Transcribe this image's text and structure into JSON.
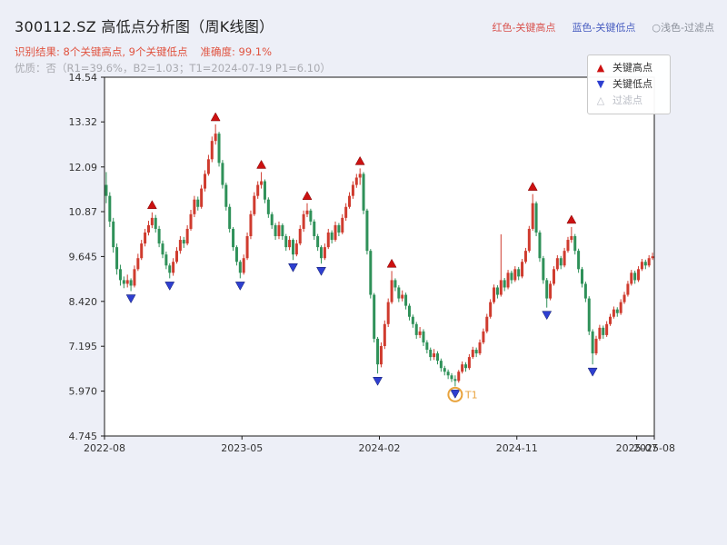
{
  "header": {
    "title": "300112.SZ 高低点分析图（周K线图）",
    "legend": {
      "high": "红色-关键高点",
      "low": "蓝色-关键低点",
      "filtered": "○浅色-过滤点",
      "high_color": "#d9534f",
      "low_color": "#4a5fc1",
      "filtered_color": "#8a8f99"
    },
    "result_text": "识别结果: 8个关键高点, 9个关键低点",
    "accuracy_text": "准确度: 99.1%",
    "quality_text": "优质：否（R1=39.6%，B2=1.03；T1=2024-07-19 P1=6.10）"
  },
  "chart_legend": [
    {
      "symbol": "▲",
      "label": "关键高点",
      "color": "#cc1111",
      "label_color": "#333333"
    },
    {
      "symbol": "▼",
      "label": "关键低点",
      "color": "#2e3fd0",
      "label_color": "#333333"
    },
    {
      "symbol": "△",
      "label": "过滤点",
      "color": "#b9bcc4",
      "label_color": "#b9bcc4"
    }
  ],
  "chart_data": {
    "type": "candlestick",
    "title": "300112.SZ 高低点分析图（周K线图）",
    "xlabel": "",
    "ylabel": "",
    "legend_position": "upper-right",
    "grid": false,
    "ylim": [
      4.745,
      14.54
    ],
    "y_ticks": [
      "4.745",
      "5.970",
      "7.195",
      "8.420",
      "9.645",
      "10.87",
      "12.09",
      "13.32",
      "14.54"
    ],
    "x_ticks": [
      {
        "label": "2022-08",
        "index": 0
      },
      {
        "label": "2023-05",
        "index": 39
      },
      {
        "label": "2024-02",
        "index": 78
      },
      {
        "label": "2024-11",
        "index": 117
      },
      {
        "label": "2025-07",
        "index": 151
      },
      {
        "label": "2025-08",
        "index": 156
      }
    ],
    "up_color": "#cf3b2e",
    "down_color": "#2f9159",
    "high_marker_color": "#cc1111",
    "low_marker_color": "#2e3fd0",
    "t1_color": "#e8a33d",
    "high_points": [
      13,
      31,
      44,
      57,
      72,
      81,
      121,
      132
    ],
    "low_points": [
      7,
      18,
      38,
      53,
      61,
      77,
      99,
      125,
      138
    ],
    "t1_marker": {
      "index": 99,
      "label": "T1",
      "price": 6.1
    },
    "candles": [
      [
        11.6,
        11.95,
        11.1,
        11.3
      ],
      [
        11.3,
        11.4,
        10.45,
        10.6
      ],
      [
        10.6,
        10.7,
        9.75,
        9.9
      ],
      [
        9.9,
        10.0,
        9.15,
        9.3
      ],
      [
        9.3,
        9.42,
        8.85,
        9.0
      ],
      [
        9.0,
        9.1,
        8.78,
        8.9
      ],
      [
        8.9,
        9.15,
        8.8,
        9.0
      ],
      [
        9.0,
        9.05,
        8.7,
        8.85
      ],
      [
        8.85,
        9.4,
        8.8,
        9.3
      ],
      [
        9.3,
        9.72,
        9.25,
        9.6
      ],
      [
        9.6,
        10.1,
        9.55,
        10.0
      ],
      [
        10.0,
        10.4,
        9.92,
        10.3
      ],
      [
        10.3,
        10.62,
        10.22,
        10.5
      ],
      [
        10.5,
        10.85,
        10.42,
        10.7
      ],
      [
        10.7,
        10.78,
        10.3,
        10.4
      ],
      [
        10.4,
        10.48,
        9.9,
        10.0
      ],
      [
        10.0,
        10.08,
        9.6,
        9.7
      ],
      [
        9.7,
        9.78,
        9.3,
        9.4
      ],
      [
        9.4,
        9.46,
        9.05,
        9.2
      ],
      [
        9.2,
        9.6,
        9.12,
        9.5
      ],
      [
        9.5,
        9.9,
        9.45,
        9.8
      ],
      [
        9.8,
        10.2,
        9.72,
        10.1
      ],
      [
        10.1,
        10.18,
        9.88,
        10.0
      ],
      [
        10.0,
        10.5,
        9.95,
        10.4
      ],
      [
        10.4,
        10.92,
        10.35,
        10.8
      ],
      [
        10.8,
        11.3,
        10.72,
        11.2
      ],
      [
        11.2,
        11.28,
        10.9,
        11.0
      ],
      [
        11.0,
        11.6,
        10.95,
        11.5
      ],
      [
        11.5,
        12.0,
        11.42,
        11.9
      ],
      [
        11.9,
        12.42,
        11.85,
        12.3
      ],
      [
        12.3,
        12.92,
        12.22,
        12.8
      ],
      [
        12.8,
        13.25,
        12.7,
        13.0
      ],
      [
        13.0,
        13.05,
        12.1,
        12.2
      ],
      [
        12.2,
        12.28,
        11.5,
        11.6
      ],
      [
        11.6,
        11.66,
        10.9,
        11.0
      ],
      [
        11.0,
        11.08,
        10.3,
        10.4
      ],
      [
        10.4,
        10.45,
        9.8,
        9.9
      ],
      [
        9.9,
        9.95,
        9.4,
        9.5
      ],
      [
        9.5,
        9.55,
        9.05,
        9.2
      ],
      [
        9.2,
        9.7,
        9.15,
        9.6
      ],
      [
        9.6,
        10.3,
        9.55,
        10.2
      ],
      [
        10.2,
        10.9,
        10.12,
        10.8
      ],
      [
        10.8,
        11.4,
        10.75,
        11.3
      ],
      [
        11.3,
        11.7,
        11.22,
        11.6
      ],
      [
        11.6,
        11.95,
        11.5,
        11.7
      ],
      [
        11.7,
        11.75,
        11.1,
        11.2
      ],
      [
        11.2,
        11.26,
        10.7,
        10.8
      ],
      [
        10.8,
        10.86,
        10.4,
        10.5
      ],
      [
        10.5,
        10.56,
        10.1,
        10.2
      ],
      [
        10.2,
        10.6,
        10.12,
        10.5
      ],
      [
        10.5,
        10.55,
        10.1,
        10.2
      ],
      [
        10.2,
        10.26,
        9.8,
        9.9
      ],
      [
        9.9,
        10.2,
        9.82,
        10.1
      ],
      [
        10.1,
        10.14,
        9.55,
        9.7
      ],
      [
        9.7,
        10.1,
        9.65,
        10.0
      ],
      [
        10.0,
        10.5,
        9.95,
        10.4
      ],
      [
        10.4,
        10.9,
        10.32,
        10.8
      ],
      [
        10.8,
        11.1,
        10.72,
        10.9
      ],
      [
        10.9,
        10.95,
        10.5,
        10.6
      ],
      [
        10.6,
        10.66,
        10.1,
        10.2
      ],
      [
        10.2,
        10.26,
        9.8,
        9.9
      ],
      [
        9.9,
        9.95,
        9.45,
        9.6
      ],
      [
        9.6,
        10.0,
        9.55,
        9.9
      ],
      [
        9.9,
        10.4,
        9.85,
        10.3
      ],
      [
        10.3,
        10.36,
        10.0,
        10.1
      ],
      [
        10.1,
        10.6,
        10.05,
        10.5
      ],
      [
        10.5,
        10.56,
        10.2,
        10.3
      ],
      [
        10.3,
        10.8,
        10.25,
        10.7
      ],
      [
        10.7,
        11.1,
        10.62,
        11.0
      ],
      [
        11.0,
        11.4,
        10.95,
        11.3
      ],
      [
        11.3,
        11.7,
        11.22,
        11.6
      ],
      [
        11.6,
        11.9,
        11.52,
        11.8
      ],
      [
        11.8,
        12.05,
        11.6,
        11.9
      ],
      [
        11.9,
        11.95,
        10.8,
        10.9
      ],
      [
        10.9,
        10.95,
        9.7,
        9.8
      ],
      [
        9.8,
        9.85,
        8.5,
        8.6
      ],
      [
        8.6,
        8.65,
        7.3,
        7.4
      ],
      [
        7.4,
        7.45,
        6.45,
        6.7
      ],
      [
        6.7,
        7.3,
        6.62,
        7.2
      ],
      [
        7.2,
        7.9,
        7.12,
        7.8
      ],
      [
        7.8,
        8.5,
        7.72,
        8.4
      ],
      [
        8.4,
        9.25,
        8.35,
        9.0
      ],
      [
        9.0,
        9.05,
        8.7,
        8.8
      ],
      [
        8.8,
        8.86,
        8.4,
        8.5
      ],
      [
        8.5,
        8.72,
        8.42,
        8.6
      ],
      [
        8.6,
        8.66,
        8.2,
        8.3
      ],
      [
        8.3,
        8.36,
        7.9,
        8.0
      ],
      [
        8.0,
        8.06,
        7.7,
        7.8
      ],
      [
        7.8,
        7.86,
        7.4,
        7.5
      ],
      [
        7.5,
        7.72,
        7.42,
        7.6
      ],
      [
        7.6,
        7.66,
        7.2,
        7.3
      ],
      [
        7.3,
        7.36,
        7.0,
        7.1
      ],
      [
        7.1,
        7.16,
        6.8,
        6.9
      ],
      [
        6.9,
        7.12,
        6.82,
        7.0
      ],
      [
        7.0,
        7.06,
        6.7,
        6.8
      ],
      [
        6.8,
        6.86,
        6.5,
        6.6
      ],
      [
        6.6,
        6.66,
        6.4,
        6.5
      ],
      [
        6.5,
        6.56,
        6.3,
        6.4
      ],
      [
        6.4,
        6.46,
        6.22,
        6.3
      ],
      [
        6.3,
        6.4,
        6.1,
        6.25
      ],
      [
        6.25,
        6.55,
        6.2,
        6.5
      ],
      [
        6.5,
        6.78,
        6.45,
        6.7
      ],
      [
        6.7,
        6.76,
        6.5,
        6.6
      ],
      [
        6.6,
        6.98,
        6.55,
        6.9
      ],
      [
        6.9,
        7.18,
        6.85,
        7.1
      ],
      [
        7.1,
        7.16,
        6.9,
        7.0
      ],
      [
        7.0,
        7.38,
        6.95,
        7.3
      ],
      [
        7.3,
        7.68,
        7.25,
        7.6
      ],
      [
        7.6,
        8.08,
        7.55,
        8.0
      ],
      [
        8.0,
        8.48,
        7.95,
        8.4
      ],
      [
        8.4,
        8.88,
        8.35,
        8.8
      ],
      [
        8.8,
        8.86,
        8.5,
        8.6
      ],
      [
        8.6,
        10.25,
        8.55,
        9.0
      ],
      [
        9.0,
        9.06,
        8.7,
        8.8
      ],
      [
        8.8,
        9.28,
        8.75,
        9.2
      ],
      [
        9.2,
        9.26,
        8.9,
        9.0
      ],
      [
        9.0,
        9.38,
        8.95,
        9.3
      ],
      [
        9.3,
        9.36,
        9.0,
        9.1
      ],
      [
        9.1,
        9.58,
        9.05,
        9.5
      ],
      [
        9.5,
        9.88,
        9.45,
        9.8
      ],
      [
        9.8,
        10.48,
        9.75,
        10.4
      ],
      [
        10.4,
        11.35,
        10.35,
        11.1
      ],
      [
        11.1,
        11.15,
        10.2,
        10.3
      ],
      [
        10.3,
        10.36,
        9.5,
        9.6
      ],
      [
        9.6,
        9.66,
        8.9,
        9.0
      ],
      [
        9.0,
        9.06,
        8.25,
        8.5
      ],
      [
        8.5,
        8.98,
        8.45,
        8.9
      ],
      [
        8.9,
        9.38,
        8.85,
        9.3
      ],
      [
        9.3,
        9.68,
        9.25,
        9.6
      ],
      [
        9.6,
        9.66,
        9.3,
        9.4
      ],
      [
        9.4,
        9.88,
        9.35,
        9.8
      ],
      [
        9.8,
        10.18,
        9.75,
        10.1
      ],
      [
        10.1,
        10.45,
        10.02,
        10.2
      ],
      [
        10.2,
        10.26,
        9.7,
        9.8
      ],
      [
        9.8,
        9.86,
        9.2,
        9.3
      ],
      [
        9.3,
        9.36,
        8.8,
        8.9
      ],
      [
        8.9,
        8.96,
        8.4,
        8.5
      ],
      [
        8.5,
        8.56,
        7.5,
        7.6
      ],
      [
        7.6,
        7.66,
        6.7,
        7.0
      ],
      [
        7.0,
        7.48,
        6.95,
        7.4
      ],
      [
        7.4,
        7.78,
        7.35,
        7.7
      ],
      [
        7.7,
        7.76,
        7.4,
        7.5
      ],
      [
        7.5,
        7.88,
        7.45,
        7.8
      ],
      [
        7.8,
        8.08,
        7.75,
        8.0
      ],
      [
        8.0,
        8.28,
        7.95,
        8.2
      ],
      [
        8.2,
        8.26,
        8.0,
        8.1
      ],
      [
        8.1,
        8.48,
        8.05,
        8.4
      ],
      [
        8.4,
        8.68,
        8.35,
        8.6
      ],
      [
        8.6,
        8.98,
        8.55,
        8.9
      ],
      [
        8.9,
        9.28,
        8.85,
        9.2
      ],
      [
        9.2,
        9.26,
        8.9,
        9.0
      ],
      [
        9.0,
        9.38,
        8.95,
        9.3
      ],
      [
        9.3,
        9.58,
        9.25,
        9.5
      ],
      [
        9.5,
        9.56,
        9.3,
        9.4
      ],
      [
        9.4,
        9.68,
        9.35,
        9.6
      ],
      [
        9.6,
        9.75,
        9.55,
        9.65
      ]
    ]
  }
}
